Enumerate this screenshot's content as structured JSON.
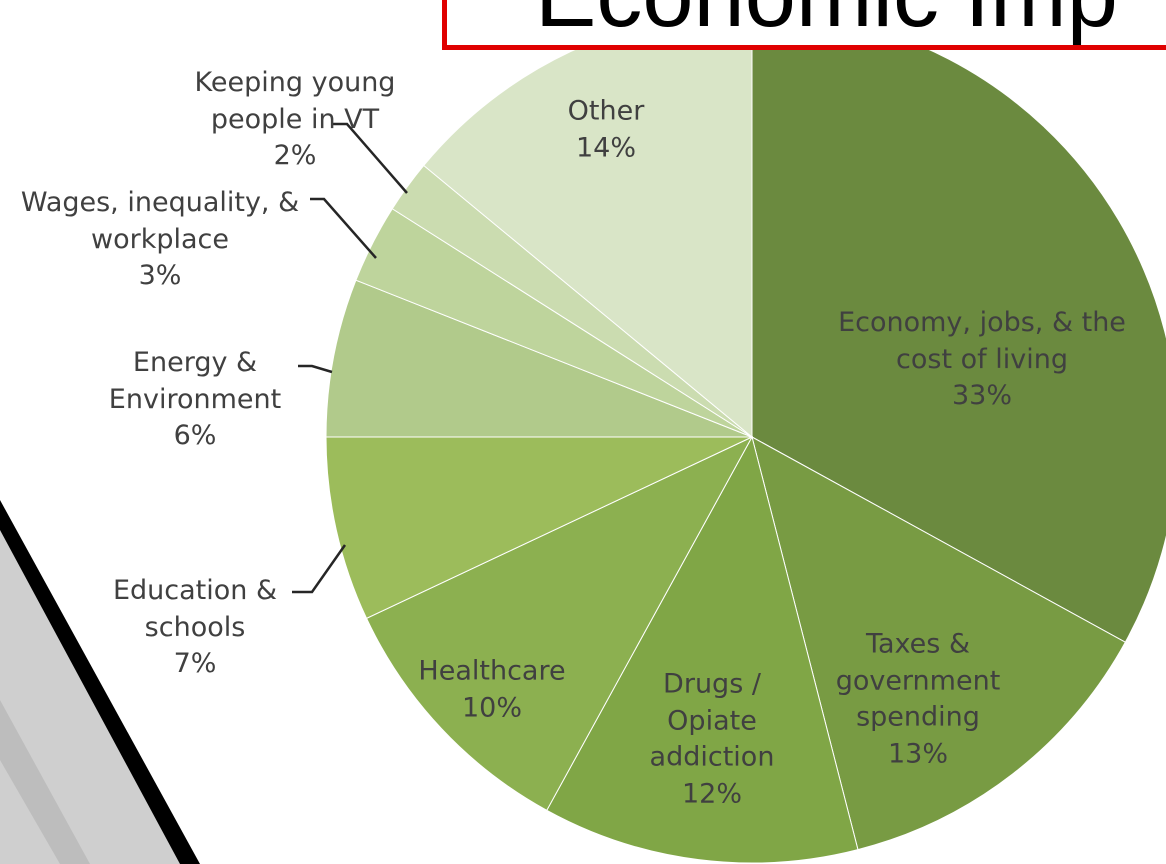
{
  "chart_data": {
    "type": "pie",
    "title": "Economic Imp",
    "categories": [
      "Economy, jobs, & the cost of living",
      "Taxes & government spending",
      "Drugs / Opiate addiction",
      "Healthcare",
      "Education & schools",
      "Energy & Environment",
      "Wages, inequality, & workplace",
      "Keeping young people in VT",
      "Other"
    ],
    "values": [
      33,
      13,
      12,
      10,
      7,
      6,
      3,
      2,
      14
    ],
    "value_labels": [
      "33%",
      "13%",
      "12%",
      "10%",
      "7%",
      "6%",
      "3%",
      "2%",
      "14%"
    ],
    "colors": [
      "#6b8a3f",
      "#789b43",
      "#80a646",
      "#8cb050",
      "#9cbc5b",
      "#b1ca8b",
      "#bed49c",
      "#cbdcb0",
      "#d9e5c7"
    ]
  }
}
